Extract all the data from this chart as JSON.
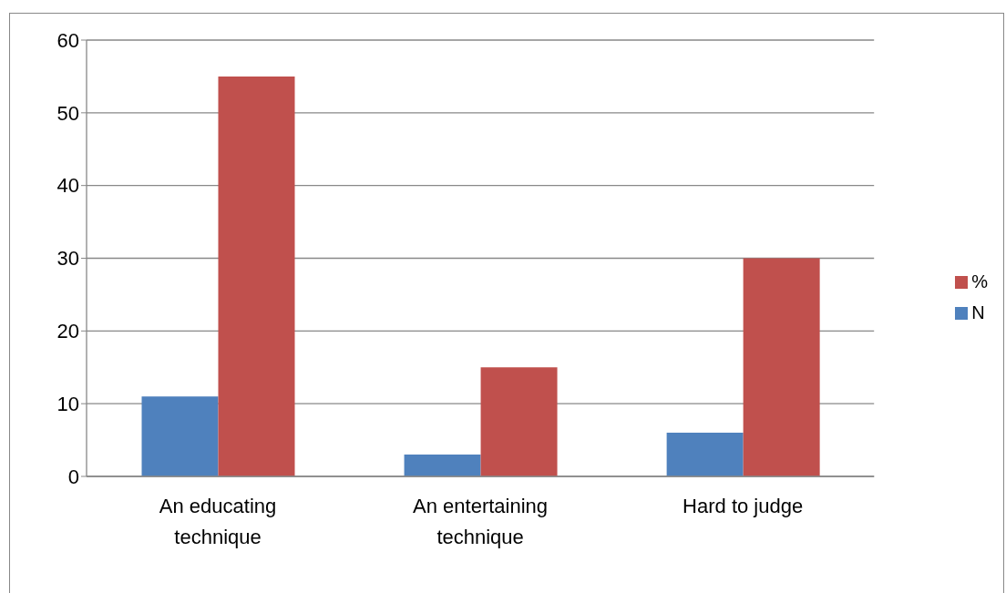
{
  "chart_data": {
    "type": "bar",
    "categories": [
      "An educating technique",
      "An entertaining technique",
      "Hard to judge"
    ],
    "series": [
      {
        "name": "N",
        "color": "#4f81bd",
        "values": [
          11,
          3,
          6
        ]
      },
      {
        "name": "%",
        "color": "#c0504d",
        "values": [
          55,
          15,
          30
        ]
      }
    ],
    "ylim": [
      0,
      60
    ],
    "yticks": [
      0,
      10,
      20,
      30,
      40,
      50,
      60
    ],
    "grid": "y",
    "legend": "right"
  }
}
